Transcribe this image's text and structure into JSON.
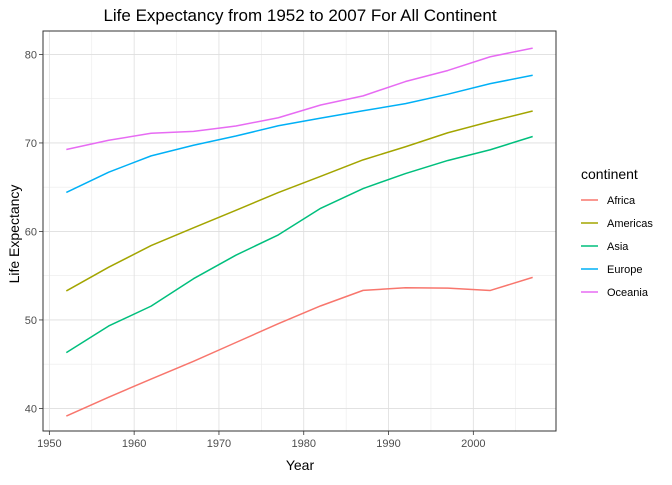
{
  "chart_data": {
    "type": "line",
    "title": "Life Expectancy from 1952 to 2007 For All Continent",
    "xlabel": "Year",
    "ylabel": "Life Expectancy",
    "x": [
      1952,
      1957,
      1962,
      1967,
      1972,
      1977,
      1982,
      1987,
      1992,
      1997,
      2002,
      2007
    ],
    "xlim": [
      1949.25,
      2009.75
    ],
    "ylim": [
      37.45,
      82.65
    ],
    "xticks": [
      1950,
      1960,
      1970,
      1980,
      1990,
      2000
    ],
    "yticks": [
      40,
      50,
      60,
      70,
      80
    ],
    "grid": true,
    "legend_title": "continent",
    "legend_position": "right",
    "series": [
      {
        "name": "Africa",
        "color": "#F8766D",
        "values": [
          39.14,
          41.27,
          43.32,
          45.33,
          47.45,
          49.58,
          51.59,
          53.34,
          53.63,
          53.6,
          53.33,
          54.81
        ]
      },
      {
        "name": "Americas",
        "color": "#A3A500",
        "values": [
          53.28,
          55.96,
          58.4,
          60.41,
          62.39,
          64.39,
          66.23,
          68.09,
          69.57,
          71.15,
          72.42,
          73.61
        ]
      },
      {
        "name": "Asia",
        "color": "#00BF7D",
        "values": [
          46.31,
          49.32,
          51.56,
          54.66,
          57.32,
          59.61,
          62.62,
          64.85,
          66.54,
          68.02,
          69.23,
          70.73
        ]
      },
      {
        "name": "Europe",
        "color": "#00B0F6",
        "values": [
          64.41,
          66.7,
          68.54,
          69.74,
          70.78,
          71.94,
          72.81,
          73.64,
          74.44,
          75.51,
          76.7,
          77.65
        ]
      },
      {
        "name": "Oceania",
        "color": "#E76BF3",
        "values": [
          69.26,
          70.3,
          71.09,
          71.31,
          71.91,
          72.85,
          74.29,
          75.32,
          76.94,
          78.19,
          79.74,
          80.72
        ]
      }
    ]
  }
}
